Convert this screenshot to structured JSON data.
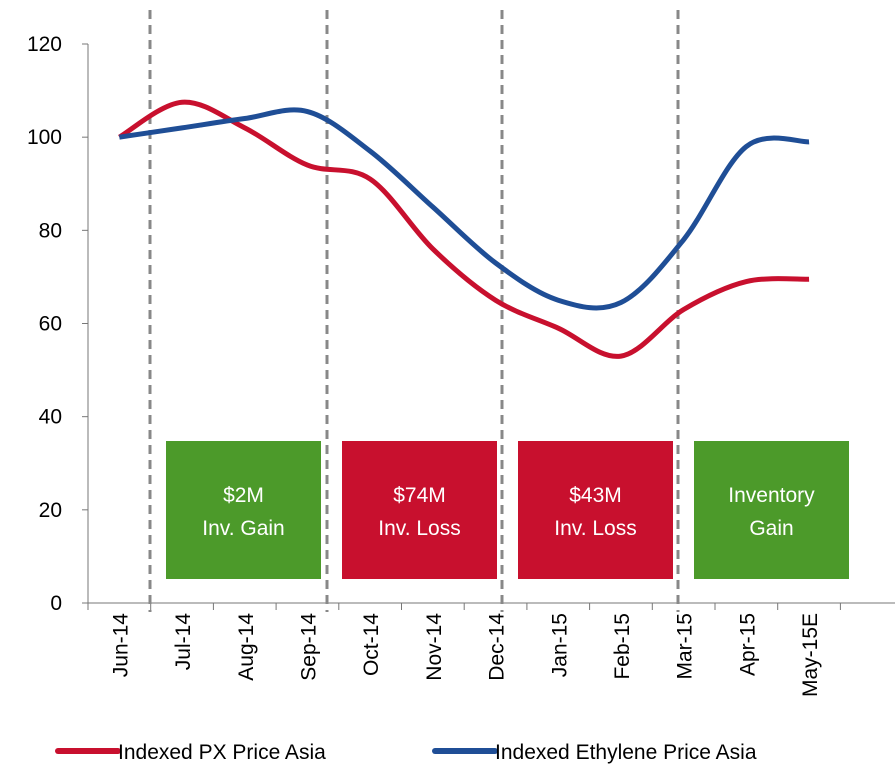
{
  "chart_data": {
    "type": "line",
    "categories": [
      "Jun-14",
      "Jul-14",
      "Aug-14",
      "Sep-14",
      "Oct-14",
      "Nov-14",
      "Dec-14",
      "Jan-15",
      "Feb-15",
      "Mar-15",
      "Apr-15",
      "May-15E",
      null
    ],
    "series": [
      {
        "name": "Indexed PX Price Asia",
        "color": "#c8102e",
        "values": [
          100,
          107.5,
          102,
          94,
          91,
          76,
          65,
          59,
          53,
          63,
          69,
          69.5,
          null
        ]
      },
      {
        "name": "Indexed Ethylene Price Asia",
        "color": "#1f4e96",
        "values": [
          100,
          102,
          104,
          105.5,
          97,
          85,
          73,
          65,
          64.5,
          78,
          98,
          99,
          null
        ]
      }
    ],
    "ylim": [
      0,
      120
    ],
    "yticks": [
      0,
      20,
      40,
      60,
      80,
      100,
      120
    ],
    "grid": false,
    "legend": "bottom",
    "annotations": [
      {
        "lines": [
          "$2M",
          "Inv. Gain"
        ],
        "color": "#4c9a2a"
      },
      {
        "lines": [
          "$74M",
          "Inv. Loss"
        ],
        "color": "#c8102e"
      },
      {
        "lines": [
          "$43M",
          "Inv. Loss"
        ],
        "color": "#c8102e"
      },
      {
        "lines": [
          "Inventory",
          "Gain"
        ],
        "color": "#4c9a2a"
      }
    ]
  }
}
